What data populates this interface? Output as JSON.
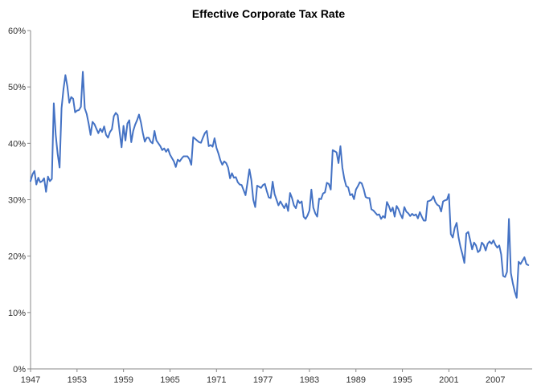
{
  "chart_data": {
    "type": "line",
    "title": "Effective Corporate Tax Rate",
    "xlabel": "",
    "ylabel": "",
    "ylim": [
      0,
      0.6
    ],
    "xlim": [
      1947.0,
      2011.75
    ],
    "grid": false,
    "legend": "none",
    "y_ticks": [
      0,
      0.1,
      0.2,
      0.3,
      0.4,
      0.5,
      0.6
    ],
    "y_tick_labels": [
      "0%",
      "10%",
      "20%",
      "30%",
      "40%",
      "50%",
      "60%"
    ],
    "x_ticks": [
      1947,
      1953,
      1959,
      1965,
      1971,
      1977,
      1983,
      1989,
      1995,
      2001,
      2007
    ],
    "x_tick_labels": [
      "1947",
      "1953",
      "1959",
      "1965",
      "1971",
      "1977",
      "1983",
      "1989",
      "1995",
      "2001",
      "2007"
    ],
    "series": [
      {
        "color": "#4472c4",
        "x_start": 1947.0,
        "x_step": 0.25,
        "values": [
          0.333,
          0.345,
          0.351,
          0.327,
          0.339,
          0.331,
          0.333,
          0.338,
          0.314,
          0.341,
          0.333,
          0.337,
          0.471,
          0.415,
          0.381,
          0.357,
          0.462,
          0.496,
          0.521,
          0.501,
          0.472,
          0.482,
          0.479,
          0.455,
          0.458,
          0.459,
          0.465,
          0.527,
          0.462,
          0.452,
          0.435,
          0.415,
          0.438,
          0.434,
          0.426,
          0.418,
          0.426,
          0.42,
          0.43,
          0.415,
          0.41,
          0.42,
          0.425,
          0.448,
          0.454,
          0.45,
          0.42,
          0.393,
          0.431,
          0.405,
          0.435,
          0.441,
          0.402,
          0.422,
          0.433,
          0.441,
          0.451,
          0.437,
          0.418,
          0.403,
          0.41,
          0.41,
          0.403,
          0.4,
          0.422,
          0.405,
          0.4,
          0.395,
          0.388,
          0.391,
          0.385,
          0.39,
          0.38,
          0.374,
          0.368,
          0.358,
          0.371,
          0.368,
          0.373,
          0.377,
          0.377,
          0.377,
          0.372,
          0.362,
          0.411,
          0.408,
          0.405,
          0.402,
          0.401,
          0.41,
          0.418,
          0.422,
          0.395,
          0.397,
          0.394,
          0.409,
          0.392,
          0.382,
          0.37,
          0.362,
          0.368,
          0.365,
          0.357,
          0.338,
          0.347,
          0.339,
          0.34,
          0.331,
          0.327,
          0.326,
          0.317,
          0.308,
          0.33,
          0.354,
          0.335,
          0.3,
          0.287,
          0.325,
          0.323,
          0.321,
          0.326,
          0.328,
          0.315,
          0.304,
          0.303,
          0.332,
          0.31,
          0.3,
          0.29,
          0.297,
          0.291,
          0.285,
          0.293,
          0.28,
          0.312,
          0.303,
          0.29,
          0.285,
          0.299,
          0.294,
          0.297,
          0.27,
          0.266,
          0.272,
          0.281,
          0.318,
          0.286,
          0.276,
          0.27,
          0.302,
          0.301,
          0.311,
          0.313,
          0.33,
          0.328,
          0.318,
          0.388,
          0.386,
          0.384,
          0.365,
          0.395,
          0.357,
          0.337,
          0.324,
          0.322,
          0.308,
          0.31,
          0.301,
          0.318,
          0.324,
          0.331,
          0.329,
          0.319,
          0.305,
          0.303,
          0.303,
          0.283,
          0.281,
          0.277,
          0.273,
          0.274,
          0.266,
          0.271,
          0.268,
          0.296,
          0.289,
          0.279,
          0.286,
          0.27,
          0.289,
          0.283,
          0.274,
          0.267,
          0.287,
          0.279,
          0.276,
          0.271,
          0.275,
          0.272,
          0.274,
          0.267,
          0.278,
          0.27,
          0.263,
          0.263,
          0.297,
          0.298,
          0.3,
          0.306,
          0.296,
          0.291,
          0.289,
          0.279,
          0.297,
          0.299,
          0.3,
          0.31,
          0.239,
          0.233,
          0.25,
          0.259,
          0.233,
          0.216,
          0.203,
          0.188,
          0.24,
          0.243,
          0.228,
          0.212,
          0.224,
          0.219,
          0.207,
          0.21,
          0.224,
          0.22,
          0.21,
          0.222,
          0.226,
          0.222,
          0.228,
          0.22,
          0.215,
          0.219,
          0.203,
          0.165,
          0.163,
          0.172,
          0.266,
          0.17,
          0.152,
          0.137,
          0.126,
          0.19,
          0.186,
          0.192,
          0.198,
          0.186,
          0.184
        ]
      }
    ]
  }
}
